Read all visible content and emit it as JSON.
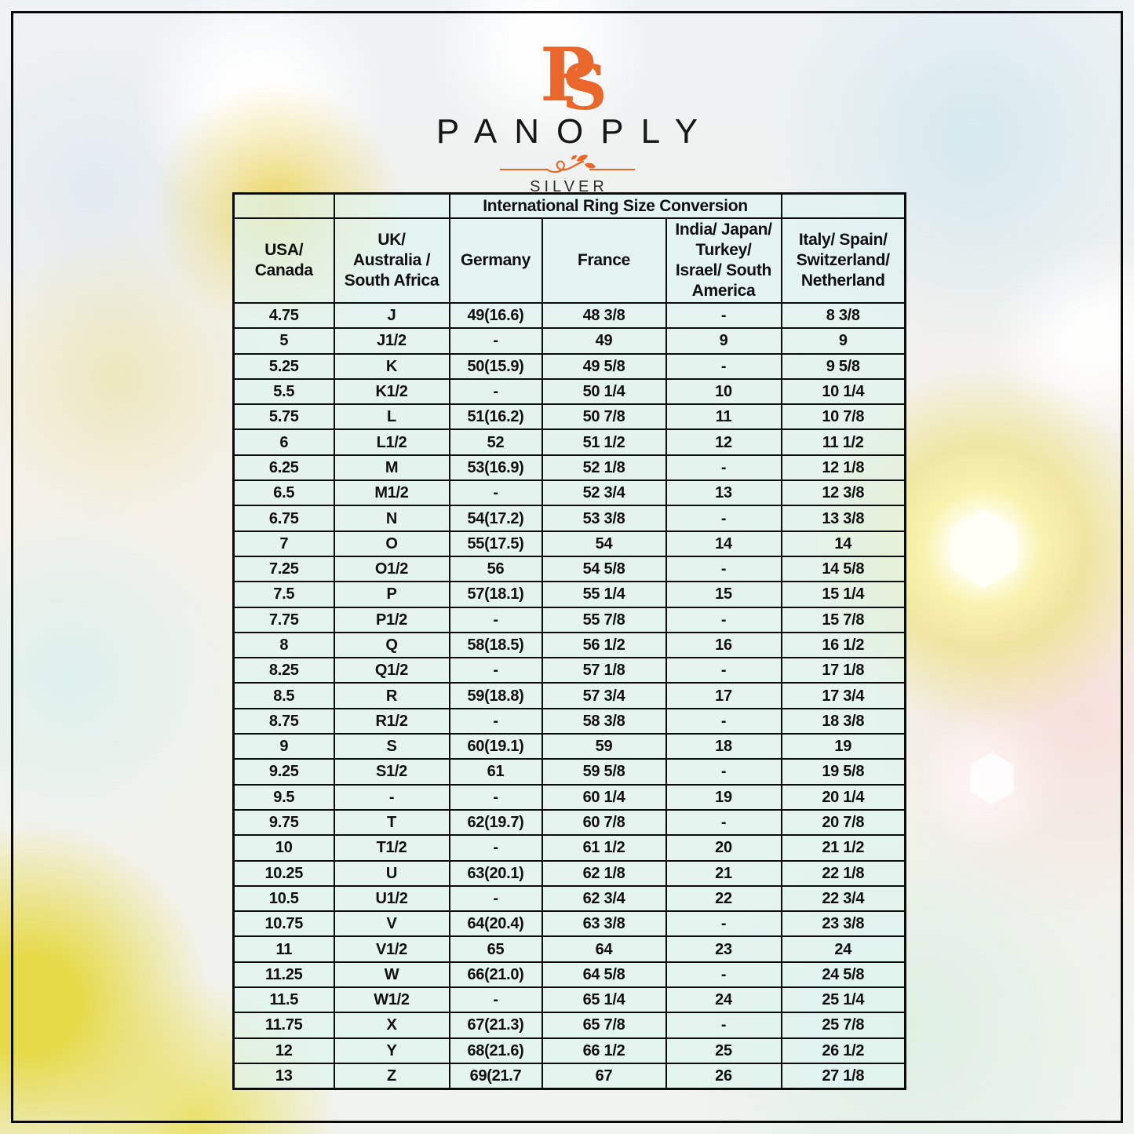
{
  "logo": {
    "monogram": "PS",
    "brand": "PANOPLY",
    "subtitle": "SILVER"
  },
  "colors": {
    "accent_orange": "#e9672a",
    "table_border": "#0c0c0c",
    "cell_tint": "#dff4f0"
  },
  "table": {
    "title": "International Ring Size Conversion",
    "columns": [
      "USA/\nCanada",
      "UK/\nAustralia /\nSouth Africa",
      "Germany",
      "France",
      "India/ Japan/\nTurkey/\nIsrael/ South\nAmerica",
      "Italy/ Spain/\nSwitzerland/\nNetherland"
    ],
    "rows": [
      [
        "4.75",
        "J",
        "49(16.6)",
        "48 3/8",
        "-",
        "8 3/8"
      ],
      [
        "5",
        "J1/2",
        "-",
        "49",
        "9",
        "9"
      ],
      [
        "5.25",
        "K",
        "50(15.9)",
        "49 5/8",
        "-",
        "9 5/8"
      ],
      [
        "5.5",
        "K1/2",
        "-",
        "50 1/4",
        "10",
        "10 1/4"
      ],
      [
        "5.75",
        "L",
        "51(16.2)",
        "50 7/8",
        "11",
        "10 7/8"
      ],
      [
        "6",
        "L1/2",
        "52",
        "51 1/2",
        "12",
        "11 1/2"
      ],
      [
        "6.25",
        "M",
        "53(16.9)",
        "52 1/8",
        "-",
        "12 1/8"
      ],
      [
        "6.5",
        "M1/2",
        "-",
        "52 3/4",
        "13",
        "12 3/8"
      ],
      [
        "6.75",
        "N",
        "54(17.2)",
        "53 3/8",
        "-",
        "13 3/8"
      ],
      [
        "7",
        "O",
        "55(17.5)",
        "54",
        "14",
        "14"
      ],
      [
        "7.25",
        "O1/2",
        "56",
        "54 5/8",
        "-",
        "14 5/8"
      ],
      [
        "7.5",
        "P",
        "57(18.1)",
        "55 1/4",
        "15",
        "15 1/4"
      ],
      [
        "7.75",
        "P1/2",
        "-",
        "55 7/8",
        "-",
        "15 7/8"
      ],
      [
        "8",
        "Q",
        "58(18.5)",
        "56 1/2",
        "16",
        "16 1/2"
      ],
      [
        "8.25",
        "Q1/2",
        "-",
        "57 1/8",
        "-",
        "17 1/8"
      ],
      [
        "8.5",
        "R",
        "59(18.8)",
        "57 3/4",
        "17",
        "17 3/4"
      ],
      [
        "8.75",
        "R1/2",
        "-",
        "58 3/8",
        "-",
        "18 3/8"
      ],
      [
        "9",
        "S",
        "60(19.1)",
        "59",
        "18",
        "19"
      ],
      [
        "9.25",
        "S1/2",
        "61",
        "59 5/8",
        "-",
        "19 5/8"
      ],
      [
        "9.5",
        "-",
        "-",
        "60 1/4",
        "19",
        "20 1/4"
      ],
      [
        "9.75",
        "T",
        "62(19.7)",
        "60 7/8",
        "-",
        "20 7/8"
      ],
      [
        "10",
        "T1/2",
        "-",
        "61 1/2",
        "20",
        "21 1/2"
      ],
      [
        "10.25",
        "U",
        "63(20.1)",
        "62 1/8",
        "21",
        "22 1/8"
      ],
      [
        "10.5",
        "U1/2",
        "-",
        "62 3/4",
        "22",
        "22 3/4"
      ],
      [
        "10.75",
        "V",
        "64(20.4)",
        "63 3/8",
        "-",
        "23 3/8"
      ],
      [
        "11",
        "V1/2",
        "65",
        "64",
        "23",
        "24"
      ],
      [
        "11.25",
        "W",
        "66(21.0)",
        "64 5/8",
        "-",
        "24 5/8"
      ],
      [
        "11.5",
        "W1/2",
        "-",
        "65 1/4",
        "24",
        "25 1/4"
      ],
      [
        "11.75",
        "X",
        "67(21.3)",
        "65 7/8",
        "-",
        "25 7/8"
      ],
      [
        "12",
        "Y",
        "68(21.6)",
        "66 1/2",
        "25",
        "26 1/2"
      ],
      [
        "13",
        "Z",
        "69(21.7",
        "67",
        "26",
        "27 1/8"
      ]
    ]
  }
}
